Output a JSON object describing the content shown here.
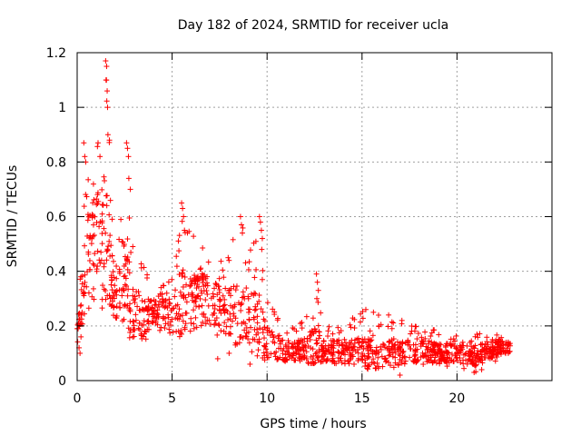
{
  "chart_data": {
    "type": "scatter",
    "title": "Day 182 of 2024, SRMTID for receiver ucla",
    "xlabel": "GPS time / hours",
    "ylabel": "SRMTID / TECUs",
    "xlim": [
      0,
      25
    ],
    "ylim": [
      0,
      1.2
    ],
    "xticks": [
      0,
      5,
      10,
      15,
      20
    ],
    "xtick_labels": [
      "0",
      "5",
      "10",
      "15",
      "20"
    ],
    "yticks": [
      0,
      0.2,
      0.4,
      0.6,
      0.8,
      1,
      1.2
    ],
    "ytick_labels": [
      "0",
      "0.2",
      "0.4",
      "0.6",
      "0.8",
      "1",
      "1.2"
    ],
    "grid": true,
    "marker": "plus",
    "color": "#ff0000",
    "envelope": {
      "hours": [
        0,
        0.5,
        1,
        1.5,
        2,
        2.5,
        3,
        3.5,
        4,
        4.5,
        5,
        5.5,
        6,
        6.5,
        7,
        7.5,
        8,
        8.5,
        9,
        9.5,
        10,
        11,
        12,
        12.5,
        13,
        14,
        15,
        16,
        17,
        18,
        19,
        20,
        21,
        22,
        22.8
      ],
      "low": [
        0.1,
        0.22,
        0.3,
        0.2,
        0.2,
        0.18,
        0.14,
        0.13,
        0.15,
        0.16,
        0.17,
        0.18,
        0.17,
        0.18,
        0.17,
        0.16,
        0.15,
        0.14,
        0.12,
        0.1,
        0.07,
        0.07,
        0.07,
        0.07,
        0.06,
        0.05,
        0.05,
        0.04,
        0.05,
        0.06,
        0.05,
        0.05,
        0.03,
        0.07,
        0.08
      ],
      "mid": [
        0.2,
        0.45,
        0.55,
        0.5,
        0.28,
        0.32,
        0.26,
        0.22,
        0.25,
        0.27,
        0.26,
        0.28,
        0.27,
        0.3,
        0.29,
        0.27,
        0.25,
        0.24,
        0.22,
        0.2,
        0.14,
        0.11,
        0.11,
        0.12,
        0.11,
        0.1,
        0.1,
        0.09,
        0.1,
        0.11,
        0.1,
        0.1,
        0.09,
        0.12,
        0.12
      ],
      "high": [
        0.35,
        0.8,
        0.82,
        1.17,
        0.4,
        0.87,
        0.5,
        0.42,
        0.35,
        0.38,
        0.4,
        0.65,
        0.57,
        0.52,
        0.5,
        0.45,
        0.47,
        0.6,
        0.52,
        0.6,
        0.3,
        0.2,
        0.22,
        0.39,
        0.22,
        0.2,
        0.26,
        0.24,
        0.22,
        0.2,
        0.19,
        0.17,
        0.17,
        0.18,
        0.16
      ]
    },
    "points": [
      [
        1.5,
        1.17
      ],
      [
        1.55,
        1.15
      ],
      [
        1.52,
        1.1
      ],
      [
        1.58,
        1.06
      ],
      [
        1.6,
        1.0
      ],
      [
        1.62,
        0.9
      ],
      [
        1.7,
        0.88
      ],
      [
        0.35,
        0.87
      ],
      [
        0.4,
        0.82
      ],
      [
        0.45,
        0.8
      ],
      [
        1.1,
        0.87
      ],
      [
        1.2,
        0.82
      ],
      [
        2.6,
        0.87
      ],
      [
        2.65,
        0.85
      ],
      [
        2.7,
        0.82
      ],
      [
        2.72,
        0.74
      ],
      [
        2.8,
        0.7
      ],
      [
        5.5,
        0.65
      ],
      [
        5.55,
        0.63
      ],
      [
        5.6,
        0.6
      ],
      [
        5.65,
        0.55
      ],
      [
        8.6,
        0.6
      ],
      [
        8.65,
        0.57
      ],
      [
        8.7,
        0.54
      ],
      [
        9.6,
        0.6
      ],
      [
        9.65,
        0.58
      ],
      [
        9.7,
        0.55
      ],
      [
        9.75,
        0.52
      ],
      [
        9.72,
        0.48
      ],
      [
        12.6,
        0.39
      ],
      [
        12.65,
        0.36
      ],
      [
        12.7,
        0.33
      ],
      [
        12.62,
        0.3
      ],
      [
        15.2,
        0.26
      ],
      [
        15.6,
        0.25
      ],
      [
        16.4,
        0.24
      ],
      [
        17.1,
        0.22
      ],
      [
        0.05,
        0.19
      ],
      [
        0.1,
        0.12
      ],
      [
        0.15,
        0.1
      ],
      [
        0.2,
        0.16
      ],
      [
        17.0,
        0.02
      ],
      [
        7.4,
        0.08
      ],
      [
        8.0,
        0.1
      ],
      [
        9.1,
        0.06
      ],
      [
        21.3,
        0.04
      ],
      [
        20.9,
        0.03
      ],
      [
        22.7,
        0.1
      ]
    ]
  }
}
